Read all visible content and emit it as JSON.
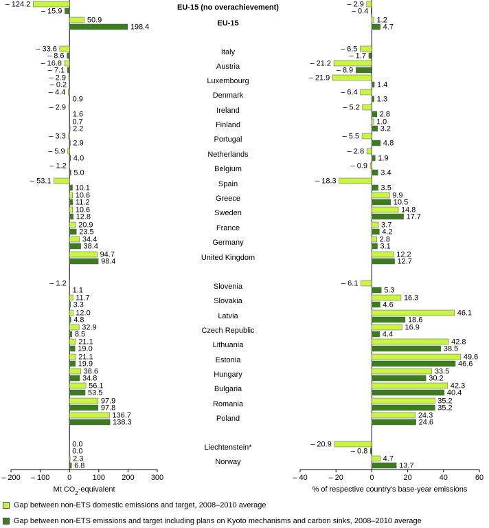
{
  "chart_data": {
    "type": "bar",
    "orientation": "horizontal",
    "colors": {
      "light": "#c7f542",
      "dark": "#3c7d1e"
    },
    "categories": [
      "EU-15 (no overachievement)",
      "EU-15",
      "Italy",
      "Austria",
      "Luxembourg",
      "Denmark",
      "Ireland",
      "Finland",
      "Portugal",
      "Netherlands",
      "Belgium",
      "Spain",
      "Greece",
      "Sweden",
      "France",
      "Germany",
      "United Kingdom",
      "Slovenia",
      "Slovakia",
      "Latvia",
      "Czech Republic",
      "Lithuania",
      "Estonia",
      "Hungary",
      "Bulgaria",
      "Romania",
      "Poland",
      "Liechtenstein*",
      "Norway"
    ],
    "bold_categories": [
      "EU-15 (no overachievement)",
      "EU-15"
    ],
    "series": [
      {
        "name": "Gap between non-ETS domestic emissions and target, 2008–2010 average",
        "color": "#c7f542"
      },
      {
        "name": "Gap between non-ETS emissions and target including plans on Kyoto mechanisms and carbon sinks, 2008–2010 average",
        "color": "#3c7d1e"
      }
    ],
    "panels": [
      {
        "xlabel_parts": [
          "Mt CO",
          "2",
          "-equivalent"
        ],
        "xlim": [
          -200,
          300
        ],
        "xticks": [
          "– 200",
          "– 100",
          "0",
          "100",
          "200",
          "300"
        ],
        "tick_values": [
          -200,
          -100,
          0,
          100,
          200,
          300
        ],
        "series_values": [
          [
            -124.2,
            50.9,
            -33.6,
            -16.8,
            -2.9,
            -4.4,
            -2.9,
            0.7,
            -3.3,
            -5.9,
            -1.2,
            -53.1,
            10.6,
            10.6,
            20.9,
            34.4,
            94.7,
            -1.2,
            11.7,
            12.0,
            32.9,
            21.1,
            21.1,
            38.6,
            56.1,
            97.9,
            136.7,
            0.0,
            2.3
          ],
          [
            -15.9,
            198.4,
            -8.6,
            -7.1,
            -0.2,
            0.9,
            1.6,
            2.2,
            2.9,
            4.0,
            5.0,
            10.1,
            11.2,
            12.8,
            23.5,
            38.4,
            98.4,
            1.1,
            3.3,
            4.8,
            8.5,
            19.0,
            19.9,
            34.8,
            53.5,
            97.8,
            138.3,
            0.0,
            6.8
          ]
        ],
        "labels": [
          [
            "– 124.2",
            "50.9",
            "– 33.6",
            "– 16.8",
            "– 2.9",
            "– 4.4",
            "– 2.9",
            "0.7",
            "– 3.3",
            "– 5.9",
            "– 1.2",
            "– 53.1",
            "10.6",
            "10.6",
            "20.9",
            "34.4",
            "94.7",
            "– 1.2",
            "11.7",
            "12.0",
            "32.9",
            "21.1",
            "21.1",
            "38.6",
            "56.1",
            "97.9",
            "136.7",
            "0.0",
            "2.3"
          ],
          [
            "– 15.9",
            "198.4",
            "– 8.6",
            "– 7.1",
            "– 0.2",
            "0.9",
            "1.6",
            "2.2",
            "2.9",
            "4.0",
            "5.0",
            "10.1",
            "11.2",
            "12.8",
            "23.5",
            "38.4",
            "98.4",
            "1.1",
            "3.3",
            "4.8",
            "8.5",
            "19.0",
            "19.9",
            "34.8",
            "53.5",
            "97.8",
            "138.3",
            "0.0",
            "6.8"
          ]
        ]
      },
      {
        "xlabel_parts": [
          "% of respective country's base-year emissions"
        ],
        "xlim": [
          -40,
          60
        ],
        "xticks": [
          "– 40",
          "– 20",
          "0",
          "20",
          "40",
          "60"
        ],
        "tick_values": [
          -40,
          -20,
          0,
          20,
          40,
          60
        ],
        "series_values": [
          [
            -2.9,
            1.2,
            -6.5,
            -21.2,
            -21.9,
            -6.4,
            -5.2,
            1.0,
            -5.5,
            -2.8,
            -0.9,
            -18.3,
            9.9,
            14.8,
            3.7,
            2.8,
            12.2,
            -6.1,
            16.3,
            46.1,
            16.9,
            42.8,
            49.6,
            33.5,
            42.3,
            35.2,
            24.3,
            -20.9,
            4.7
          ],
          [
            -0.4,
            4.7,
            -1.7,
            -8.9,
            1.4,
            1.3,
            2.8,
            3.2,
            4.8,
            1.9,
            3.4,
            3.5,
            10.5,
            17.7,
            4.2,
            3.1,
            12.7,
            5.3,
            4.6,
            18.6,
            4.4,
            38.5,
            46.6,
            30.2,
            40.4,
            35.2,
            24.6,
            -0.8,
            13.7
          ]
        ],
        "labels": [
          [
            "– 2.9",
            "1.2",
            "– 6.5",
            "– 21.2",
            "– 21.9",
            "– 6.4",
            "– 5.2",
            "1.0",
            "– 5.5",
            "– 2.8",
            "– 0.9",
            "– 18.3",
            "9.9",
            "14.8",
            "3.7",
            "2.8",
            "12.2",
            "– 6.1",
            "16.3",
            "46.1",
            "16.9",
            "42.8",
            "49.6",
            "33.5",
            "42.3",
            "35.2",
            "24.3",
            "– 20.9",
            "4.7"
          ],
          [
            "– 0.4",
            "4.7",
            "– 1.7",
            "– 8.9",
            "1.4",
            "1.3",
            "2.8",
            "3.2",
            "4.8",
            "1.9",
            "3.4",
            "3.5",
            "10.5",
            "17.7",
            "4.2",
            "3.1",
            "12.7",
            "5.3",
            "4.6",
            "18.6",
            "4.4",
            "38.5",
            "46.6",
            "30.2",
            "40.4",
            "35.2",
            "24.6",
            "– 0.8",
            "13.7"
          ]
        ]
      }
    ]
  }
}
